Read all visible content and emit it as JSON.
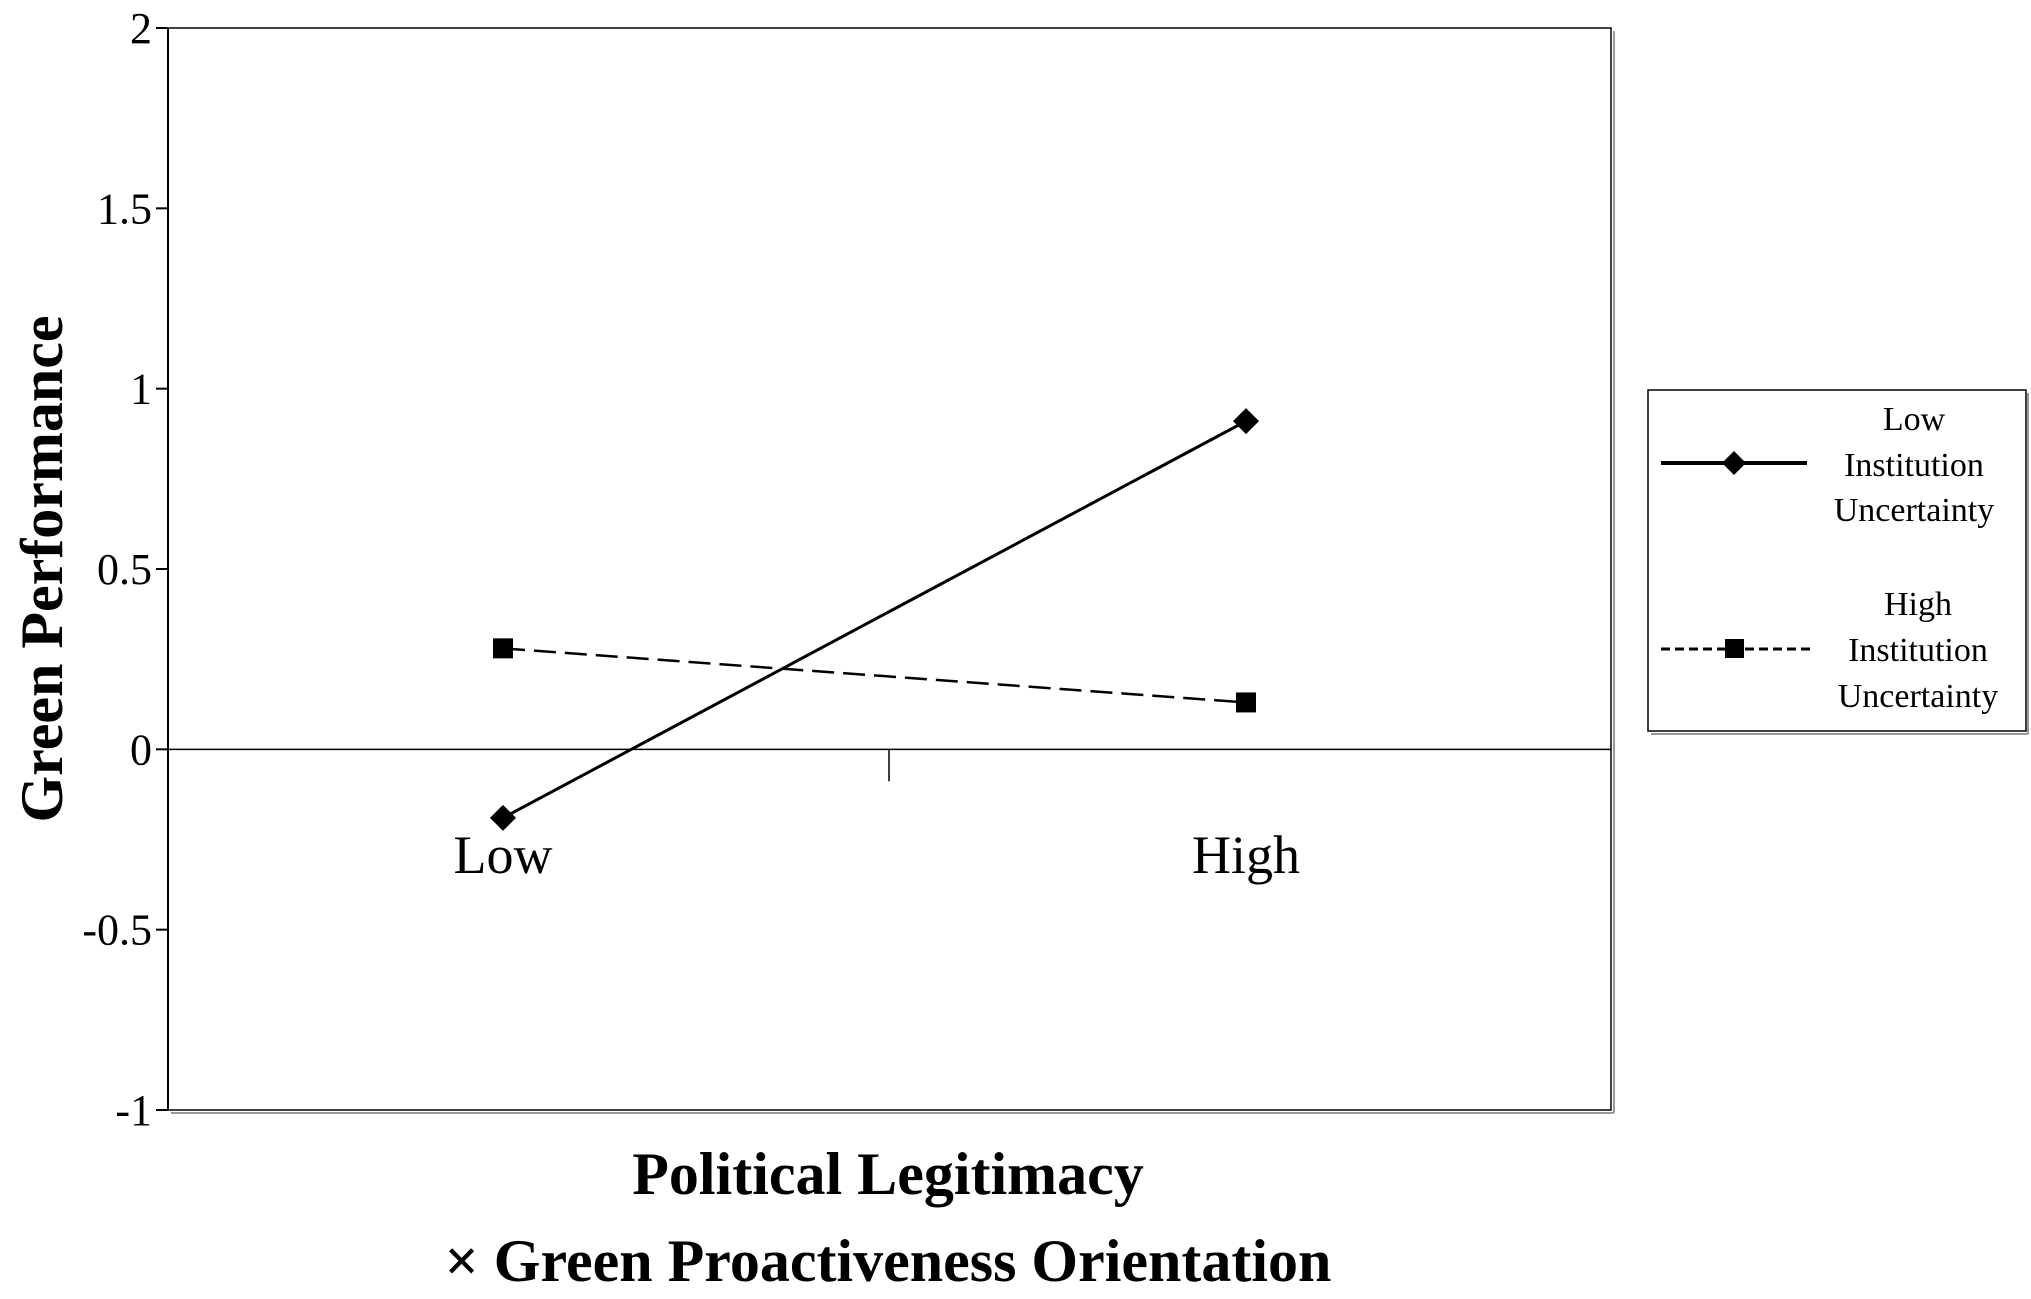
{
  "chart_data": {
    "type": "line",
    "title": "",
    "xlabel_lines": [
      "Political Legitimacy",
      "× Green Proactiveness Orientation"
    ],
    "ylabel": "Green Performance",
    "categories": [
      "Low",
      "High"
    ],
    "ylim": [
      -1,
      2
    ],
    "yticks": [
      "2",
      "1.5",
      "1",
      "0.5",
      "0",
      "-0.5",
      "-1"
    ],
    "ytick_values": [
      2,
      1.5,
      1,
      0.5,
      0,
      -0.5,
      -1
    ],
    "grid": false,
    "legend_position": "right",
    "series": [
      {
        "name_lines": [
          "Low",
          "Institution",
          "Uncertainty"
        ],
        "values": [
          -0.19,
          0.91
        ],
        "line_style": "solid",
        "marker": "diamond",
        "color": "#000000"
      },
      {
        "name_lines": [
          "High",
          "Institution",
          "Uncertainty"
        ],
        "values": [
          0.28,
          0.13
        ],
        "line_style": "dashed",
        "marker": "square",
        "color": "#000000"
      }
    ]
  }
}
